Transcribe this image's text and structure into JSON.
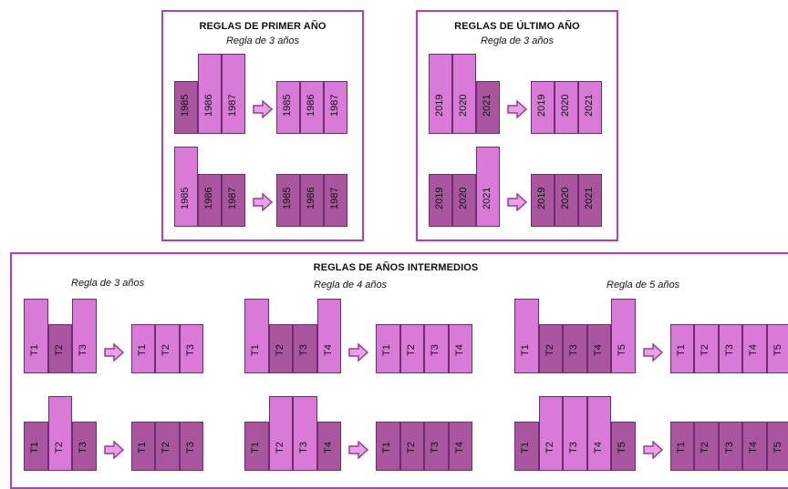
{
  "first_year": {
    "title": "REGLAS DE PRIMER AÑO",
    "subtitle": "Regla de 3 años",
    "rows": [
      {
        "before": [
          {
            "label": "1985",
            "light": false,
            "tall": false
          },
          {
            "label": "1986",
            "light": true,
            "tall": true
          },
          {
            "label": "1987",
            "light": true,
            "tall": true
          }
        ],
        "after": [
          {
            "label": "1985",
            "light": true
          },
          {
            "label": "1986",
            "light": true
          },
          {
            "label": "1987",
            "light": true
          }
        ]
      },
      {
        "before": [
          {
            "label": "1985",
            "light": true,
            "tall": true
          },
          {
            "label": "1986",
            "light": false,
            "tall": false
          },
          {
            "label": "1987",
            "light": false,
            "tall": false
          }
        ],
        "after": [
          {
            "label": "1985",
            "light": false
          },
          {
            "label": "1986",
            "light": false
          },
          {
            "label": "1987",
            "light": false
          }
        ]
      }
    ]
  },
  "last_year": {
    "title": "REGLAS DE ÚLTIMO AÑO",
    "subtitle": "Regla de 3 años",
    "rows": [
      {
        "before": [
          {
            "label": "2019",
            "light": true,
            "tall": true
          },
          {
            "label": "2020",
            "light": true,
            "tall": true
          },
          {
            "label": "2021",
            "light": false,
            "tall": false
          }
        ],
        "after": [
          {
            "label": "2019",
            "light": true
          },
          {
            "label": "2020",
            "light": true
          },
          {
            "label": "2021",
            "light": true
          }
        ]
      },
      {
        "before": [
          {
            "label": "2019",
            "light": false,
            "tall": false
          },
          {
            "label": "2020",
            "light": false,
            "tall": false
          },
          {
            "label": "2021",
            "light": true,
            "tall": true
          }
        ],
        "after": [
          {
            "label": "2019",
            "light": false
          },
          {
            "label": "2020",
            "light": false
          },
          {
            "label": "2021",
            "light": false
          }
        ]
      }
    ]
  },
  "intermediate": {
    "title": "REGLAS DE AÑOS INTERMEDIOS",
    "groups": [
      {
        "rule": "Regla de 3 años",
        "labels": [
          "T1",
          "T2",
          "T3"
        ],
        "rows": [
          {
            "before_light": [
              true,
              false,
              true
            ],
            "before_tall": [
              true,
              false,
              true
            ],
            "after_light": true
          },
          {
            "before_light": [
              false,
              true,
              false
            ],
            "before_tall": [
              false,
              true,
              false
            ],
            "after_light": false
          }
        ]
      },
      {
        "rule": "Regla de 4 años",
        "labels": [
          "T1",
          "T2",
          "T3",
          "T4"
        ],
        "rows": [
          {
            "before_light": [
              true,
              false,
              false,
              true
            ],
            "before_tall": [
              true,
              false,
              false,
              true
            ],
            "after_light": true
          },
          {
            "before_light": [
              false,
              true,
              true,
              false
            ],
            "before_tall": [
              false,
              true,
              true,
              false
            ],
            "after_light": false
          }
        ]
      },
      {
        "rule": "Regla de 5 años",
        "labels": [
          "T1",
          "T2",
          "T3",
          "T4",
          "T5"
        ],
        "rows": [
          {
            "before_light": [
              true,
              false,
              false,
              false,
              true
            ],
            "before_tall": [
              true,
              false,
              false,
              false,
              true
            ],
            "after_light": true
          },
          {
            "before_light": [
              false,
              true,
              true,
              true,
              false
            ],
            "before_tall": [
              false,
              true,
              true,
              true,
              false
            ],
            "after_light": false
          }
        ]
      }
    ]
  },
  "colors": {
    "light": "#d97ad8",
    "dark": "#a9569f",
    "border": "#b63cc4",
    "arrow_fill": "#e8a0e6",
    "arrow_stroke": "#9a3b95"
  },
  "icons": {
    "transition": "right-arrow-icon"
  }
}
